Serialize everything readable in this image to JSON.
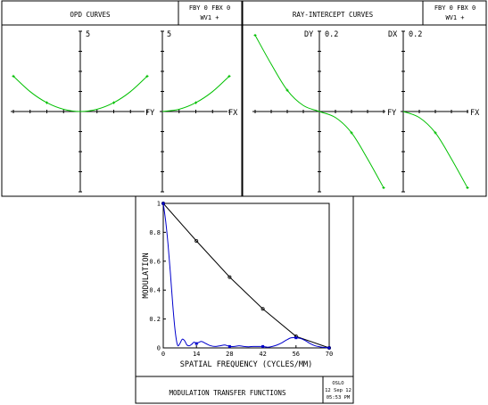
{
  "top_panels": [
    {
      "title": "OPD CURVES",
      "field_line": "FBY 0 FBX 0",
      "wavelength_line": "WV1 +",
      "plots": [
        {
          "scale_label": "5",
          "axis_label": "FY"
        },
        {
          "scale_label": "5",
          "axis_label": "FX"
        }
      ]
    },
    {
      "title": "RAY-INTERCEPT CURVES",
      "field_line": "FBY 0 FBX 0",
      "wavelength_line": "WV1 +",
      "plots": [
        {
          "scale_name": "DY",
          "scale_label": "0.2",
          "axis_label": "FY"
        },
        {
          "scale_name": "DX",
          "scale_label": "0.2",
          "axis_label": "FX"
        }
      ]
    }
  ],
  "mtf_panel": {
    "title": "MODULATION TRANSFER FUNCTIONS",
    "program": "OSLO",
    "date": "12 Sep 12",
    "time": "05:53 PM"
  },
  "chart_data": [
    {
      "type": "line",
      "panel": "OPD CURVES",
      "axis_label": "FY",
      "scale": 5,
      "xlim": [
        -1,
        1
      ],
      "ylim": [
        -5,
        5
      ],
      "series": [
        {
          "color": "#00c000",
          "x": [
            -1.0,
            -0.75,
            -0.5,
            -0.25,
            0.0,
            0.25,
            0.5,
            0.75,
            1.0
          ],
          "y": [
            2.2,
            1.24,
            0.55,
            0.14,
            0.0,
            0.14,
            0.55,
            1.24,
            2.2
          ]
        }
      ]
    },
    {
      "type": "line",
      "panel": "OPD CURVES",
      "axis_label": "FX",
      "scale": 5,
      "xlim": [
        -1,
        1
      ],
      "ylim": [
        -5,
        5
      ],
      "series": [
        {
          "color": "#00c000",
          "x": [
            0.0,
            0.25,
            0.5,
            0.75,
            1.0
          ],
          "y": [
            0.0,
            0.14,
            0.55,
            1.24,
            2.2
          ]
        }
      ]
    },
    {
      "type": "line",
      "panel": "RAY-INTERCEPT CURVES",
      "axis_label": "FY",
      "scale_name": "DY",
      "scale": 0.2,
      "xlim": [
        -1,
        1
      ],
      "ylim": [
        -0.2,
        0.2
      ],
      "series": [
        {
          "color": "#00c000",
          "x": [
            -1.0,
            -0.75,
            -0.5,
            -0.25,
            0.0,
            0.25,
            0.5,
            0.75,
            1.0
          ],
          "y": [
            0.19,
            0.118,
            0.053,
            0.015,
            0.0,
            -0.015,
            -0.053,
            -0.118,
            -0.19
          ]
        }
      ]
    },
    {
      "type": "line",
      "panel": "RAY-INTERCEPT CURVES",
      "axis_label": "FX",
      "scale_name": "DX",
      "scale": 0.2,
      "xlim": [
        -1,
        1
      ],
      "ylim": [
        -0.2,
        0.2
      ],
      "series": [
        {
          "color": "#00c000",
          "x": [
            0.0,
            0.25,
            0.5,
            0.75,
            1.0
          ],
          "y": [
            0.0,
            -0.015,
            -0.053,
            -0.118,
            -0.19
          ]
        }
      ]
    },
    {
      "type": "line",
      "title": "MODULATION TRANSFER FUNCTIONS",
      "xlabel": "SPATIAL FREQUENCY (CYCLES/MM)",
      "ylabel": "MODULATION",
      "xlim": [
        0,
        70
      ],
      "ylim": [
        0,
        1
      ],
      "xticks": [
        "0",
        "14",
        "28",
        "42",
        "56",
        "70"
      ],
      "yticks": [
        "0",
        "0.2",
        "0.4",
        "0.6",
        "0.8",
        "1"
      ],
      "series": [
        {
          "color": "#000000",
          "x": [
            0,
            14,
            28,
            42,
            56,
            70
          ],
          "y": [
            1.0,
            0.74,
            0.49,
            0.27,
            0.08,
            0.0
          ]
        },
        {
          "color": "#0000cc",
          "x": [
            0,
            1,
            2,
            3,
            4,
            5,
            6,
            7,
            8,
            9,
            10,
            11,
            12,
            13,
            14,
            16,
            18,
            20,
            22,
            24,
            26,
            28,
            30,
            32,
            34,
            36,
            38,
            40,
            42,
            44,
            46,
            48,
            50,
            52,
            54,
            56,
            58,
            60,
            62,
            64,
            66,
            68,
            70
          ],
          "y": [
            1.0,
            0.88,
            0.72,
            0.52,
            0.3,
            0.12,
            0.02,
            0.03,
            0.06,
            0.05,
            0.02,
            0.015,
            0.025,
            0.04,
            0.03,
            0.045,
            0.03,
            0.015,
            0.01,
            0.015,
            0.02,
            0.01,
            0.01,
            0.015,
            0.01,
            0.008,
            0.01,
            0.01,
            0.01,
            0.005,
            0.01,
            0.02,
            0.035,
            0.055,
            0.07,
            0.07,
            0.065,
            0.05,
            0.03,
            0.015,
            0.008,
            0.003,
            0.0
          ]
        }
      ]
    }
  ]
}
